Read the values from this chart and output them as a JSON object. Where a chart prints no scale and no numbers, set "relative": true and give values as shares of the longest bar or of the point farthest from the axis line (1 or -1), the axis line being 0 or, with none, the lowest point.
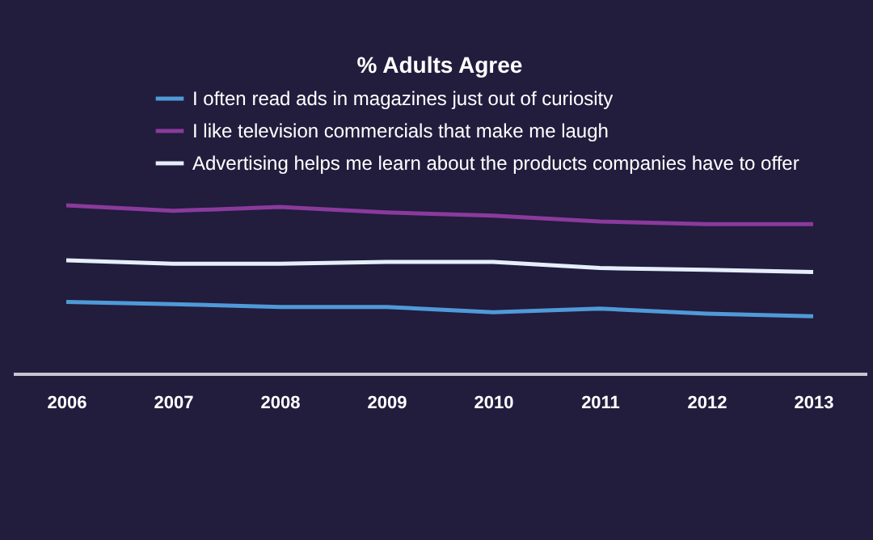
{
  "chart_data": {
    "type": "line",
    "title": "% Adults Agree",
    "relative": true,
    "legend": "top",
    "grid": false,
    "marker": "none",
    "categories": [
      "2006",
      "2007",
      "2008",
      "2009",
      "2010",
      "2011",
      "2012",
      "2013"
    ],
    "series": [
      {
        "name": "I often read ads in  magazines just out of curiosity",
        "color": "#4f9ad8",
        "values": [
          0.425,
          0.412,
          0.396,
          0.396,
          0.364,
          0.386,
          0.356,
          0.34
        ]
      },
      {
        "name": "I like television commercials that make me laugh",
        "color": "#8a3a9c",
        "values": [
          1,
          0.967,
          0.99,
          0.958,
          0.939,
          0.904,
          0.888,
          0.888
        ]
      },
      {
        "name": "Advertising helps me learn about the products companies have to offer",
        "color": "#e6eefc",
        "values": [
          0.673,
          0.653,
          0.653,
          0.664,
          0.664,
          0.627,
          0.617,
          0.603
        ]
      }
    ]
  }
}
